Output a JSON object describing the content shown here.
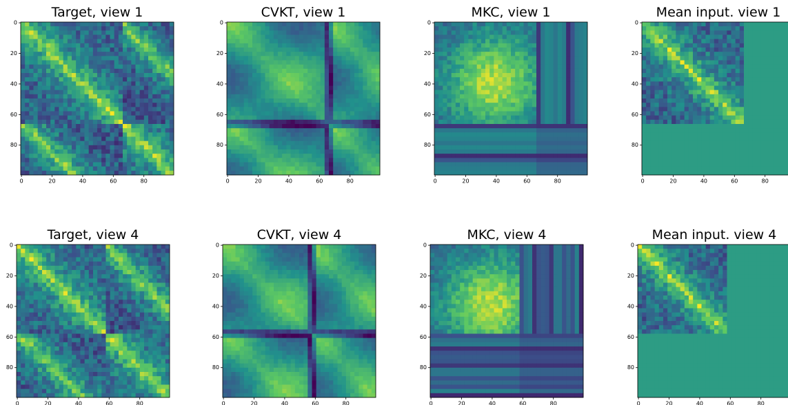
{
  "chart_data": [
    {
      "type": "heatmap",
      "title": "Target, view 1",
      "xlim": [
        -0.5,
        99.5
      ],
      "ylim": [
        99.5,
        -0.5
      ],
      "xticks": [
        0,
        20,
        40,
        60,
        80
      ],
      "yticks": [
        0,
        20,
        40,
        60,
        80
      ]
    },
    {
      "type": "heatmap",
      "title": "CVKT, view 1",
      "xlim": [
        -0.5,
        99.5
      ],
      "ylim": [
        99.5,
        -0.5
      ],
      "xticks": [
        0,
        20,
        40,
        60,
        80
      ],
      "yticks": [
        0,
        20,
        40,
        60,
        80
      ]
    },
    {
      "type": "heatmap",
      "title": "MKC, view 1",
      "xlim": [
        -0.5,
        99.5
      ],
      "ylim": [
        99.5,
        -0.5
      ],
      "xticks": [
        0,
        20,
        40,
        60,
        80
      ],
      "yticks": [
        0,
        20,
        40,
        60,
        80
      ]
    },
    {
      "type": "heatmap",
      "title": "Mean input. view 1",
      "xlim": [
        -0.5,
        99.5
      ],
      "ylim": [
        99.5,
        -0.5
      ],
      "xticks": [
        0,
        20,
        40,
        60,
        80
      ],
      "yticks": [
        0,
        20,
        40,
        60,
        80
      ]
    },
    {
      "type": "heatmap",
      "title": "Target, view 4",
      "xlim": [
        -0.5,
        99.5
      ],
      "ylim": [
        99.5,
        -0.5
      ],
      "xticks": [
        0,
        20,
        40,
        60,
        80
      ],
      "yticks": [
        0,
        20,
        40,
        60,
        80
      ]
    },
    {
      "type": "heatmap",
      "title": "CVKT, view 4",
      "xlim": [
        -0.5,
        99.5
      ],
      "ylim": [
        99.5,
        -0.5
      ],
      "xticks": [
        0,
        20,
        40,
        60,
        80
      ],
      "yticks": [
        0,
        20,
        40,
        60,
        80
      ]
    },
    {
      "type": "heatmap",
      "title": "MKC, view 4",
      "xlim": [
        -0.5,
        99.5
      ],
      "ylim": [
        99.5,
        -0.5
      ],
      "xticks": [
        0,
        20,
        40,
        60,
        80
      ],
      "yticks": [
        0,
        20,
        40,
        60,
        80
      ]
    },
    {
      "type": "heatmap",
      "title": "Mean input. view 4",
      "xlim": [
        -0.5,
        99.5
      ],
      "ylim": [
        99.5,
        -0.5
      ],
      "xticks": [
        0,
        20,
        40,
        60,
        80
      ],
      "yticks": [
        0,
        20,
        40,
        60,
        80
      ]
    }
  ]
}
